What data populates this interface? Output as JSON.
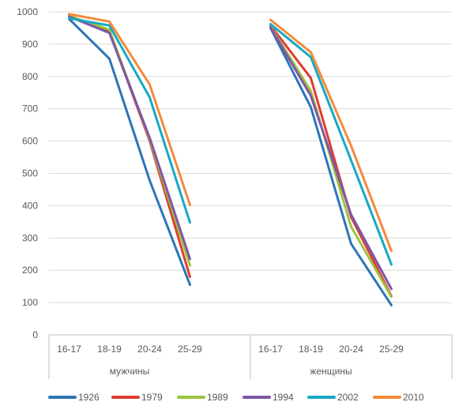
{
  "chart_data": {
    "type": "line",
    "group_labels": [
      "мужчины",
      "женщины"
    ],
    "categories": [
      "16-17",
      "18-19",
      "20-24",
      "25-29"
    ],
    "ylim": [
      0,
      1000
    ],
    "yticks": [
      0,
      100,
      200,
      300,
      400,
      500,
      600,
      700,
      800,
      900,
      1000
    ],
    "grid": true,
    "legend_position": "bottom",
    "series": [
      {
        "name": "1926",
        "color": "#2e75b6",
        "men": [
          978,
          855,
          478,
          155
        ],
        "women": [
          950,
          705,
          282,
          92
        ]
      },
      {
        "name": "1979",
        "color": "#e03c31",
        "men": [
          988,
          940,
          600,
          180
        ],
        "women": [
          958,
          795,
          365,
          120
        ]
      },
      {
        "name": "1989",
        "color": "#9bc53d",
        "men": [
          987,
          945,
          605,
          215
        ],
        "women": [
          955,
          755,
          335,
          118
        ]
      },
      {
        "name": "1994",
        "color": "#7e57a8",
        "men": [
          985,
          935,
          610,
          235
        ],
        "women": [
          952,
          740,
          372,
          142
        ]
      },
      {
        "name": "2002",
        "color": "#17a9c4",
        "men": [
          980,
          958,
          735,
          348
        ],
        "women": [
          962,
          860,
          540,
          218
        ]
      },
      {
        "name": "2010",
        "color": "#f58a3a",
        "men": [
          993,
          970,
          775,
          402
        ],
        "women": [
          975,
          875,
          585,
          260
        ]
      }
    ]
  }
}
